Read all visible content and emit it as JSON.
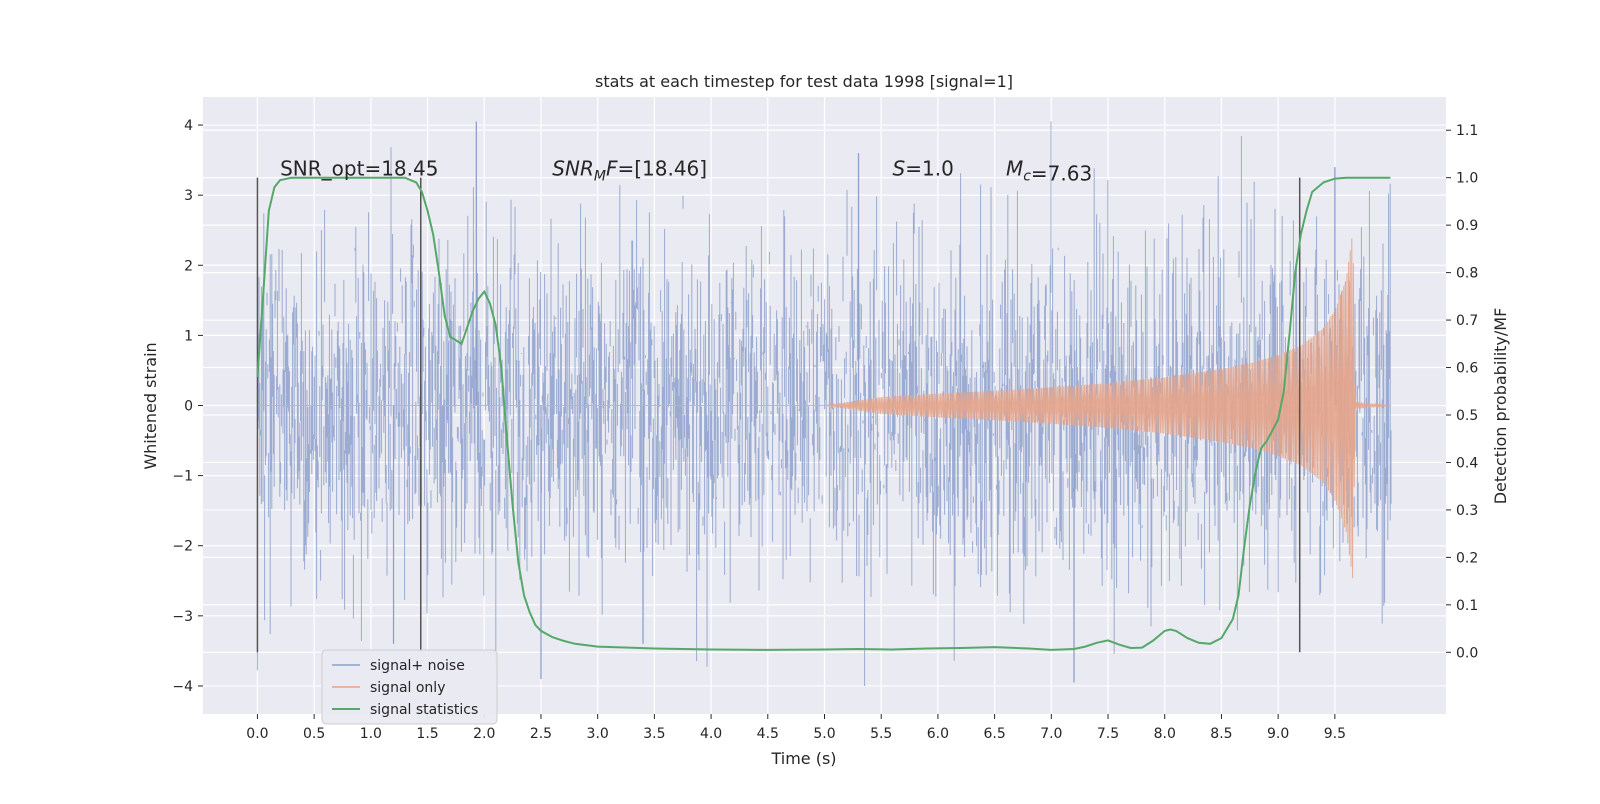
{
  "chart_data": {
    "type": "line",
    "title": "stats at each timestep for test data 1998 [signal=1]",
    "xlabel": "Time (s)",
    "ylabel": "Whitened strain",
    "y2label": "Detection probability/MF",
    "xlim": [
      -0.48,
      10.48
    ],
    "ylim": [
      -4.4,
      4.4
    ],
    "y2lim": [
      -0.13,
      1.17
    ],
    "x_ticks": [
      0.0,
      0.5,
      1.0,
      1.5,
      2.0,
      2.5,
      3.0,
      3.5,
      4.0,
      4.5,
      5.0,
      5.5,
      6.0,
      6.5,
      7.0,
      7.5,
      8.0,
      8.5,
      9.0,
      9.5
    ],
    "y_ticks": [
      -4,
      -3,
      -2,
      -1,
      0,
      1,
      2,
      3,
      4
    ],
    "y2_ticks": [
      0.0,
      0.1,
      0.2,
      0.3,
      0.4,
      0.5,
      0.6,
      0.7,
      0.8,
      0.9,
      1.0,
      1.1
    ],
    "grid": true,
    "legend_position": "lower-left",
    "annotations": [
      {
        "text": "SNR_opt=18.45",
        "x": 0.2,
        "y2": 1.0
      },
      {
        "text": "SNR_MF=[18.46]",
        "x": 2.6,
        "y2": 1.0
      },
      {
        "text": "S=1.0",
        "x": 5.6,
        "y2": 1.0
      },
      {
        "text": "M_c=7.63",
        "x": 6.6,
        "y2": 1.0
      }
    ],
    "vertical_lines": [
      {
        "x": 0.0,
        "y2_range": [
          0.0,
          1.0
        ]
      },
      {
        "x": 1.44,
        "y2_range": [
          0.0,
          1.0
        ]
      },
      {
        "x": 9.19,
        "y2_range": [
          0.0,
          1.0
        ]
      }
    ],
    "series": [
      {
        "name": "signal+ noise",
        "color": "#8da0cb",
        "kind": "noise band",
        "x_range": [
          0.0,
          10.0
        ],
        "band_sigma": 1.25,
        "y_range": [
          -4.0,
          4.05
        ],
        "notable_spikes": [
          {
            "x": 1.93,
            "y": 4.05
          },
          {
            "x": 5.3,
            "y": 3.6
          },
          {
            "x": 9.5,
            "y": 3.4
          },
          {
            "x": 2.5,
            "y": -3.9
          },
          {
            "x": 7.2,
            "y": -3.95
          },
          {
            "x": 1.2,
            "y": -3.4
          },
          {
            "x": 3.4,
            "y": -3.4
          }
        ]
      },
      {
        "name": "signal only",
        "color": "#e5a48a",
        "kind": "chirp envelope",
        "x": [
          0.0,
          5.0,
          5.5,
          6.0,
          6.5,
          7.0,
          7.5,
          8.0,
          8.5,
          8.8,
          9.0,
          9.2,
          9.4,
          9.5,
          9.6,
          9.66,
          9.68,
          10.0
        ],
        "amplitude": [
          0.0,
          0.0,
          0.12,
          0.17,
          0.21,
          0.26,
          0.32,
          0.4,
          0.52,
          0.62,
          0.72,
          0.85,
          1.1,
          1.35,
          1.8,
          2.5,
          0.05,
          0.0
        ]
      },
      {
        "name": "signal statistics",
        "color": "#55a868",
        "axis": "right",
        "x": [
          0.0,
          0.05,
          0.1,
          0.15,
          0.2,
          0.3,
          0.4,
          0.6,
          0.8,
          1.0,
          1.2,
          1.3,
          1.35,
          1.4,
          1.45,
          1.5,
          1.55,
          1.6,
          1.65,
          1.7,
          1.8,
          1.9,
          1.95,
          2.0,
          2.05,
          2.1,
          2.15,
          2.2,
          2.25,
          2.3,
          2.35,
          2.4,
          2.45,
          2.5,
          2.6,
          2.7,
          2.8,
          3.0,
          3.5,
          4.0,
          4.5,
          5.0,
          5.3,
          5.6,
          5.9,
          6.2,
          6.5,
          6.8,
          7.0,
          7.2,
          7.3,
          7.4,
          7.5,
          7.6,
          7.7,
          7.8,
          7.9,
          8.0,
          8.05,
          8.1,
          8.2,
          8.3,
          8.4,
          8.5,
          8.6,
          8.65,
          8.7,
          8.75,
          8.8,
          8.85,
          8.9,
          9.0,
          9.05,
          9.1,
          9.15,
          9.2,
          9.25,
          9.3,
          9.4,
          9.5,
          9.6,
          9.7,
          9.8,
          9.9,
          9.99
        ],
        "values": [
          0.58,
          0.75,
          0.93,
          0.98,
          0.995,
          1.0,
          1.0,
          1.0,
          1.0,
          1.0,
          1.0,
          1.0,
          0.995,
          0.99,
          0.97,
          0.93,
          0.88,
          0.8,
          0.71,
          0.665,
          0.65,
          0.72,
          0.745,
          0.76,
          0.735,
          0.69,
          0.6,
          0.45,
          0.31,
          0.19,
          0.12,
          0.085,
          0.058,
          0.045,
          0.032,
          0.024,
          0.018,
          0.012,
          0.008,
          0.006,
          0.005,
          0.006,
          0.007,
          0.006,
          0.008,
          0.009,
          0.011,
          0.008,
          0.005,
          0.007,
          0.012,
          0.02,
          0.025,
          0.016,
          0.009,
          0.01,
          0.025,
          0.045,
          0.048,
          0.045,
          0.03,
          0.02,
          0.018,
          0.03,
          0.07,
          0.12,
          0.22,
          0.31,
          0.38,
          0.43,
          0.445,
          0.49,
          0.55,
          0.67,
          0.8,
          0.88,
          0.93,
          0.97,
          0.99,
          0.998,
          1.0,
          1.0,
          1.0,
          1.0,
          1.0
        ]
      }
    ]
  }
}
